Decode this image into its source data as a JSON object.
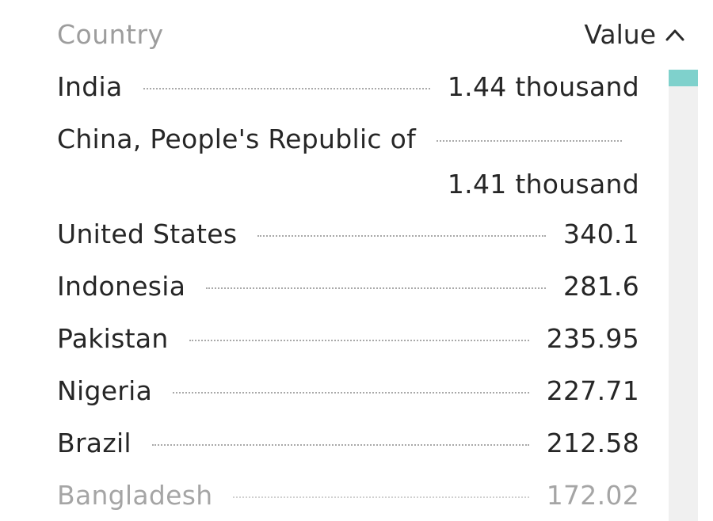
{
  "header": {
    "country_label": "Country",
    "value_label": "Value",
    "sort_icon": "chevron-up-icon"
  },
  "rows": [
    {
      "country": "India",
      "value": "1.44 thousand"
    },
    {
      "country": "China, People's Republic of",
      "value": "1.41 thousand"
    },
    {
      "country": "United States",
      "value": "340.1"
    },
    {
      "country": "Indonesia",
      "value": "281.6"
    },
    {
      "country": "Pakistan",
      "value": "235.95"
    },
    {
      "country": "Nigeria",
      "value": "227.71"
    },
    {
      "country": "Brazil",
      "value": "212.58"
    },
    {
      "country": "Bangladesh",
      "value": "172.02"
    }
  ],
  "colors": {
    "accent": "#7fd1cc",
    "header_text": "#9d9d9d",
    "text": "#262626",
    "faded_text": "#a5a5a5",
    "track": "#f0f0f0"
  }
}
